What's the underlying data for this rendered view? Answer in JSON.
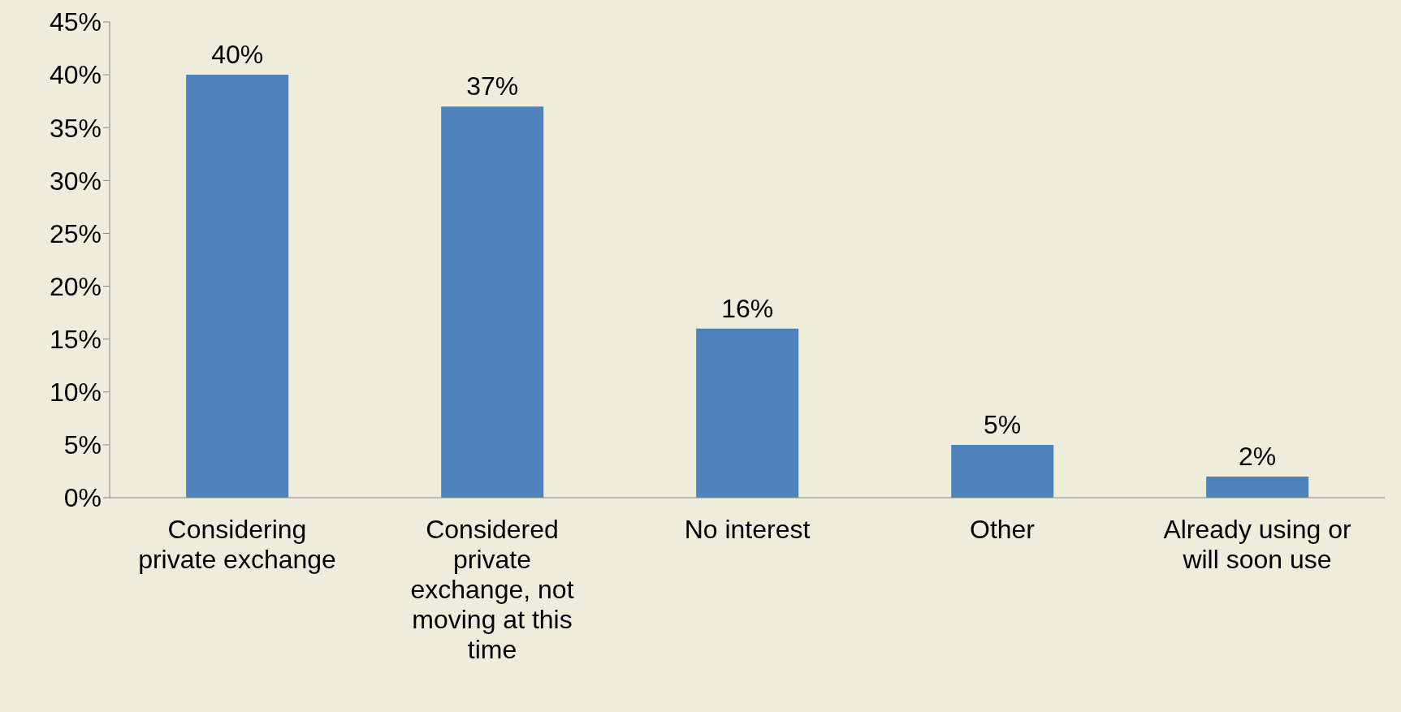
{
  "chart_data": {
    "type": "bar",
    "categories": [
      "Considering private exchange",
      "Considered private exchange, not moving at this time",
      "No interest",
      "Other",
      "Already using or will soon use"
    ],
    "values": [
      40,
      37,
      16,
      5,
      2
    ],
    "color": "#4f81bd",
    "value_labels": [
      "40%",
      "37%",
      "16%",
      "5%",
      "2%"
    ],
    "ylim": [
      0,
      45
    ],
    "yticks": [
      {
        "value": 0,
        "label": "0%"
      },
      {
        "value": 5,
        "label": "5%"
      },
      {
        "value": 10,
        "label": "10%"
      },
      {
        "value": 15,
        "label": "15%"
      },
      {
        "value": 20,
        "label": "20%"
      },
      {
        "value": 25,
        "label": "25%"
      },
      {
        "value": 30,
        "label": "30%"
      },
      {
        "value": 35,
        "label": "35%"
      },
      {
        "value": 40,
        "label": "40%"
      },
      {
        "value": 45,
        "label": "45%"
      }
    ],
    "grid": false,
    "legend": false
  }
}
